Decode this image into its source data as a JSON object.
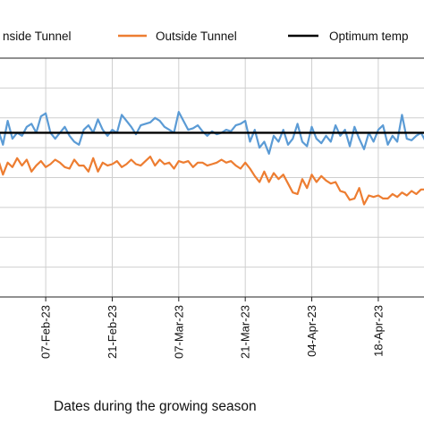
{
  "chart_data": {
    "type": "line",
    "xlabel": "Dates during the growing season",
    "ylabel": "",
    "legend": {
      "placement": "top"
    },
    "grid": {
      "x": true,
      "y": true
    },
    "x_ticks": [
      "07-Feb-23",
      "21-Feb-23",
      "07-Mar-23",
      "21-Mar-23",
      "04-Apr-23",
      "18-Apr-23"
    ],
    "x_range": [
      "2023-01-28",
      "2023-04-28"
    ],
    "y_range": [
      0,
      8
    ],
    "y_gridlines": [
      1,
      2,
      3,
      4,
      5,
      6,
      7
    ],
    "series": [
      {
        "name": "Inside Tunnel",
        "legend_label": "nside Tunnel",
        "color": "#5b9bd5",
        "start_date": "2023-01-28",
        "values": [
          5.6,
          5.1,
          5.9,
          5.3,
          5.5,
          5.4,
          5.7,
          5.8,
          5.5,
          6.05,
          6.15,
          5.5,
          5.3,
          5.5,
          5.7,
          5.4,
          5.2,
          5.1,
          5.6,
          5.75,
          5.5,
          5.95,
          5.6,
          5.4,
          5.6,
          5.5,
          6.1,
          5.9,
          5.7,
          5.45,
          5.75,
          5.8,
          5.85,
          6.0,
          5.9,
          5.7,
          5.6,
          5.5,
          6.2,
          5.9,
          5.6,
          5.65,
          5.75,
          5.55,
          5.4,
          5.55,
          5.45,
          5.5,
          5.6,
          5.55,
          5.75,
          5.8,
          5.9,
          5.2,
          5.6,
          5.0,
          5.2,
          4.8,
          5.4,
          5.2,
          5.6,
          5.1,
          5.3,
          5.8,
          5.2,
          5.05,
          5.7,
          5.3,
          5.15,
          5.4,
          5.2,
          5.75,
          5.4,
          5.6,
          5.05,
          5.7,
          5.3,
          4.95,
          5.5,
          5.2,
          5.6,
          5.75,
          5.1,
          5.4,
          5.2,
          6.1,
          5.3,
          5.25,
          5.4,
          5.5,
          5.2,
          5.1,
          5.3,
          5.1,
          5.6,
          5.3,
          5.65,
          5.55,
          5.5,
          5.5
        ]
      },
      {
        "name": "Outside Tunnel",
        "legend_label": "Outside Tunnel",
        "color": "#ed7d31",
        "start_date": "2023-01-28",
        "values": [
          4.6,
          4.1,
          4.5,
          4.35,
          4.65,
          4.4,
          4.6,
          4.2,
          4.4,
          4.55,
          4.35,
          4.45,
          4.6,
          4.5,
          4.35,
          4.3,
          4.6,
          4.4,
          4.4,
          4.2,
          4.65,
          4.2,
          4.5,
          4.4,
          4.45,
          4.55,
          4.35,
          4.45,
          4.6,
          4.45,
          4.4,
          4.55,
          4.7,
          4.4,
          4.6,
          4.45,
          4.5,
          4.3,
          4.55,
          4.5,
          4.55,
          4.35,
          4.5,
          4.5,
          4.4,
          4.45,
          4.5,
          4.6,
          4.5,
          4.55,
          4.4,
          4.3,
          4.5,
          4.3,
          4.05,
          3.85,
          4.2,
          3.85,
          4.15,
          3.95,
          4.1,
          3.8,
          3.5,
          3.45,
          3.95,
          3.65,
          4.1,
          3.85,
          4.05,
          3.9,
          3.8,
          3.85,
          3.55,
          3.5,
          3.25,
          3.3,
          3.65,
          3.1,
          3.4,
          3.35,
          3.4,
          3.3,
          3.3,
          3.45,
          3.35,
          3.5,
          3.4,
          3.55,
          3.45,
          3.6,
          3.6,
          3.5,
          3.7,
          3.8,
          3.75,
          3.95,
          4.1,
          4.05,
          3.9,
          4.0
        ]
      },
      {
        "name": "Optimum temperature",
        "legend_label": "Optimum temp",
        "color": "#000000",
        "constant": 5.5
      }
    ]
  }
}
